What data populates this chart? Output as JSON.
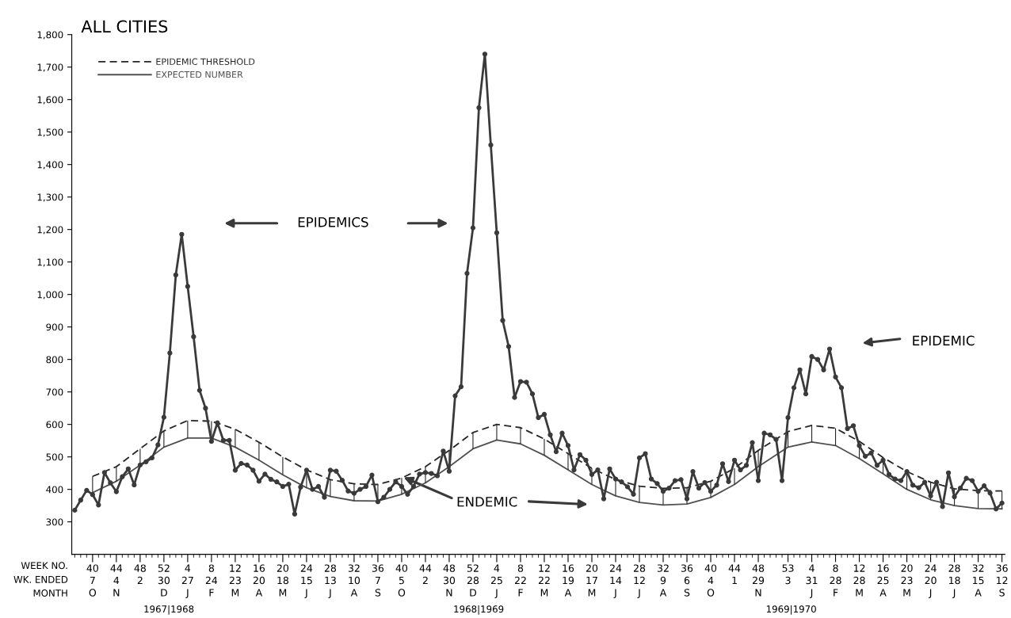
{
  "chart_data": {
    "type": "line",
    "title": "ALL CITIES",
    "categories": [
      null,
      null,
      null,
      "40\n7\nO",
      null,
      null,
      null,
      "44\n4\nN",
      null,
      null,
      null,
      "48\n2",
      null,
      null,
      null,
      "52\n30\nD",
      null,
      null,
      null,
      "4\n27\nJ",
      null,
      null,
      null,
      "8\n24\nF",
      null,
      null,
      null,
      "12\n23\nM",
      null,
      null,
      null,
      "16\n20\nA",
      null,
      null,
      null,
      "20\n18\nM",
      null,
      null,
      null,
      "24\n15\nJ",
      null,
      null,
      null,
      "28\n13\nJ",
      null,
      null,
      null,
      "32\n10\nA",
      null,
      null,
      null,
      "36\n7\nS",
      null,
      null,
      null,
      "40\n5\nO",
      null,
      null,
      null,
      "44\n2",
      null,
      null,
      null,
      "48\n30\nN",
      null,
      null,
      null,
      "52\n28\nD",
      null,
      null,
      null,
      "4\n25\nJ",
      null,
      null,
      null,
      "8\n22\nF",
      null,
      null,
      null,
      "12\n22\nM",
      null,
      null,
      null,
      "16\n19\nA",
      null,
      null,
      null,
      "20\n17\nM",
      null,
      null,
      null,
      "24\n14\nJ",
      null,
      null,
      null,
      "28\n12\nJ",
      null,
      null,
      null,
      "32\n9\nA",
      null,
      null,
      null,
      "36\n6\nS",
      null,
      null,
      null,
      "40\n4\nO",
      null,
      null,
      null,
      "44\n1",
      null,
      null,
      null,
      "48\n29\nN",
      null,
      null,
      null,
      null,
      "53\n3",
      null,
      null,
      null,
      "4\n31\nJ",
      null,
      null,
      null,
      "8\n28\nF",
      null,
      null,
      null,
      "12\n28\nM",
      null,
      null,
      null,
      "16\n25\nA",
      null,
      null,
      null,
      "20\n23\nM",
      null,
      null,
      null,
      "24\n20\nJ",
      null,
      null,
      null,
      "28\n18\nJ",
      null,
      null,
      null,
      "32\n15\nA",
      null,
      null,
      null,
      "36\n12\nS"
    ],
    "series": [
      {
        "color": "#3a3a3a",
        "marker": "circle",
        "line_style": "solid",
        "values": [
          336,
          367,
          397,
          384,
          352,
          452,
          420,
          393,
          439,
          463,
          414,
          475,
          485,
          497,
          537,
          622,
          820,
          1060,
          1185,
          1025,
          870,
          705,
          650,
          548,
          605,
          551,
          551,
          459,
          480,
          475,
          459,
          425,
          447,
          431,
          423,
          409,
          416,
          324,
          407,
          459,
          400,
          409,
          376,
          459,
          456,
          428,
          395,
          388,
          400,
          409,
          444,
          362,
          376,
          400,
          423,
          409,
          385,
          409,
          447,
          452,
          449,
          442,
          518,
          456,
          688,
          716,
          1065,
          1205,
          1575,
          1740,
          1460,
          1190,
          920,
          840,
          683,
          732,
          730,
          694,
          621,
          631,
          568,
          516,
          573,
          535,
          460,
          507,
          490,
          446,
          460,
          371,
          463,
          432,
          423,
          408,
          385,
          497,
          510,
          432,
          418,
          394,
          404,
          427,
          430,
          371,
          455,
          404,
          421,
          394,
          413,
          479,
          424,
          490,
          460,
          474,
          544,
          427,
          573,
          568,
          554,
          427,
          621,
          713,
          768,
          694,
          809,
          800,
          768,
          832,
          746,
          713,
          587,
          596,
          535,
          502,
          512,
          474,
          490,
          446,
          432,
          427,
          455,
          413,
          405,
          422,
          380,
          422,
          347,
          451,
          377,
          404,
          434,
          427,
          394,
          411,
          389,
          340,
          358
        ]
      },
      {
        "name": "EPIDEMIC THRESHOLD",
        "color": "#262626",
        "marker": "none",
        "line_style": "dashed",
        "x": [
          "40\n7\nO",
          "44\n4\nN",
          "48\n2",
          "52\n30\nD",
          "4\n27\nJ",
          "8\n24\nF",
          "12\n23\nM",
          "16\n20\nA",
          "20\n18\nM",
          "24\n15\nJ",
          "28\n13\nJ",
          "32\n10\nA",
          "36\n7\nS",
          "40\n5\nO",
          "44\n2",
          "48\n30\nN",
          "52\n28\nD",
          "4\n25\nJ",
          "8\n22\nF",
          "12\n22\nM",
          "16\n19\nA",
          "20\n17\nM",
          "24\n14\nJ",
          "28\n12\nJ",
          "32\n9\nA",
          "36\n6\nS",
          "40\n4\nO",
          "44\n1",
          "48\n29\nN",
          "53\n3",
          "4\n31\nJ",
          "8\n28\nF",
          "12\n28\nM",
          "16\n25\nA",
          "20\n23\nM",
          "24\n20\nJ",
          "28\n18\nJ",
          "32\n15\nA",
          "36\n12\nS"
        ],
        "values": [
          440,
          470,
          525,
          580,
          612,
          610,
          585,
          545,
          500,
          460,
          430,
          417,
          415,
          435,
          470,
          520,
          575,
          600,
          590,
          555,
          510,
          465,
          430,
          410,
          403,
          405,
          425,
          465,
          520,
          578,
          597,
          588,
          548,
          498,
          455,
          422,
          402,
          396,
          395
        ]
      },
      {
        "name": "EXPECTED NUMBER",
        "color": "#505050",
        "marker": "none",
        "line_style": "solid",
        "x": [
          "40\n7\nO",
          "44\n4\nN",
          "48\n2",
          "52\n30\nD",
          "4\n27\nJ",
          "8\n24\nF",
          "12\n23\nM",
          "16\n20\nA",
          "20\n18\nM",
          "24\n15\nJ",
          "28\n13\nJ",
          "32\n10\nA",
          "36\n7\nS",
          "40\n5\nO",
          "44\n2",
          "48\n30\nN",
          "52\n28\nD",
          "4\n25\nJ",
          "8\n22\nF",
          "12\n22\nM",
          "16\n19\nA",
          "20\n17\nM",
          "24\n14\nJ",
          "28\n12\nJ",
          "32\n9\nA",
          "36\n6\nS",
          "40\n4\nO",
          "44\n1",
          "48\n29\nN",
          "53\n3",
          "4\n31\nJ",
          "8\n28\nF",
          "12\n28\nM",
          "16\n25\nA",
          "20\n23\nM",
          "24\n20\nJ",
          "28\n18\nJ",
          "32\n15\nA",
          "36\n12\nS"
        ],
        "values": [
          390,
          425,
          475,
          530,
          558,
          558,
          530,
          490,
          445,
          405,
          378,
          365,
          364,
          385,
          420,
          470,
          525,
          552,
          540,
          505,
          460,
          415,
          380,
          360,
          352,
          355,
          375,
          415,
          470,
          530,
          546,
          535,
          495,
          448,
          400,
          368,
          350,
          341,
          340
        ]
      }
    ],
    "ylim": [
      200,
      1800
    ],
    "yticks": [
      300,
      400,
      500,
      600,
      700,
      800,
      900,
      {
        "value": 1000,
        "label": "1,000"
      },
      {
        "value": 1100,
        "label": "1,100"
      },
      {
        "value": 1200,
        "label": "1,200"
      },
      {
        "value": 1300,
        "label": "1,300"
      },
      {
        "value": 1400,
        "label": "1,400"
      },
      {
        "value": 1500,
        "label": "1,500"
      },
      {
        "value": 1600,
        "label": "1,600"
      },
      {
        "value": 1700,
        "label": "1,700"
      },
      {
        "value": 1800,
        "label": "1,800"
      }
    ],
    "grid": false,
    "legend": "top left",
    "annotations": [
      "WEEK NO.",
      "WK. ENDED",
      "MONTH",
      "1967|1968",
      "1968|1969",
      "1969|1970",
      "EPIDEMICS",
      {
        "text": "ENDEMIC",
        "x": "40\n5\nO",
        "y": 440
      },
      "EPIDEMIC"
    ]
  }
}
